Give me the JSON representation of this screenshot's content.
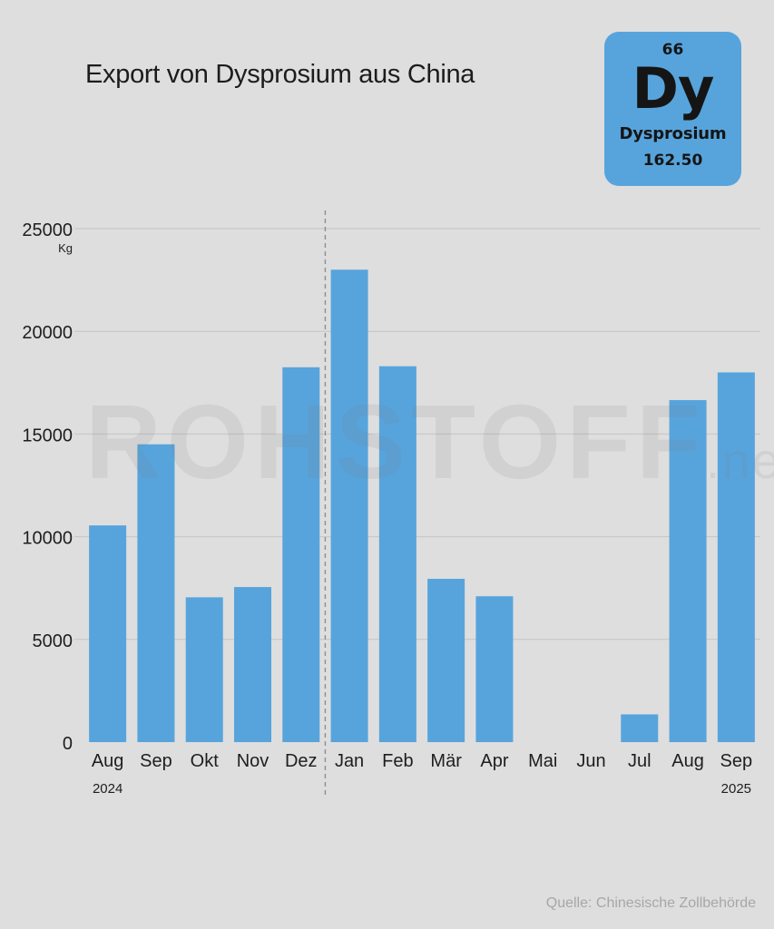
{
  "header": {
    "title": "Export von Dysprosium aus China"
  },
  "element_card": {
    "number": "66",
    "symbol": "Dy",
    "name": "Dysprosium",
    "mass": "162.50",
    "color": "#57a4dc"
  },
  "watermark": {
    "brand": "ROHSTOFF",
    "suffix": ".net"
  },
  "footer": {
    "source": "Quelle: Chinesische Zollbehörde"
  },
  "chart_data": {
    "type": "bar",
    "categories": [
      "Aug",
      "Sep",
      "Okt",
      "Nov",
      "Dez",
      "Jan",
      "Feb",
      "Mär",
      "Apr",
      "Mai",
      "Jun",
      "Jul",
      "Aug",
      "Sep"
    ],
    "values": [
      10550,
      14500,
      7050,
      7550,
      18250,
      23000,
      18300,
      7950,
      7100,
      0,
      0,
      1350,
      16650,
      18000
    ],
    "ylabel": "Kg",
    "ylim": [
      0,
      25000
    ],
    "yticks": [
      0,
      5000,
      10000,
      15000,
      20000,
      25000
    ],
    "year_labels": [
      {
        "label": "2024",
        "category_index": 0
      },
      {
        "label": "2025",
        "category_index": 13
      }
    ],
    "divider_after_index": 4,
    "bar_color": "#57a4dc",
    "grid": true,
    "legend": "none"
  }
}
